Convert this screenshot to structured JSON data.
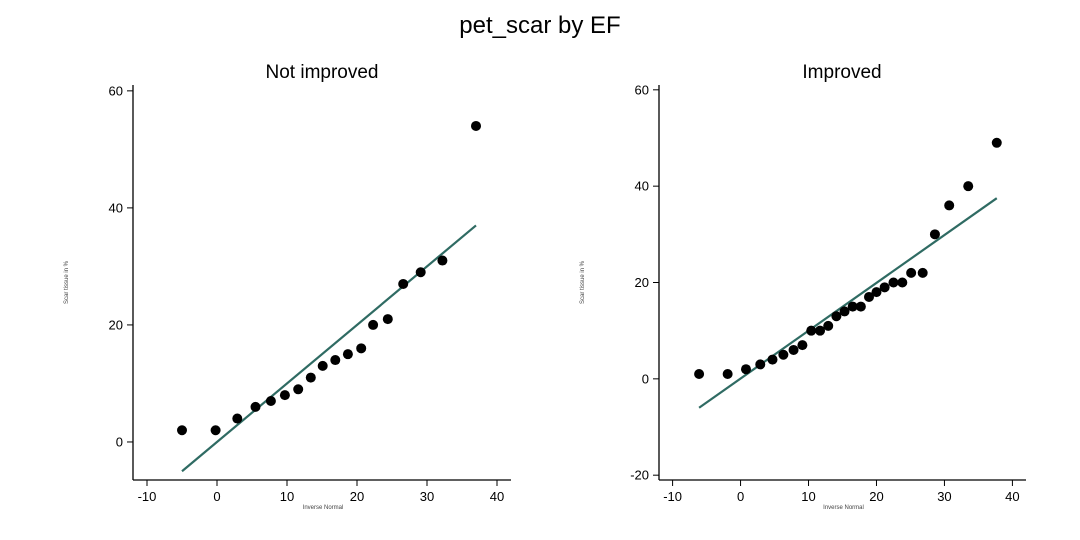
{
  "title": "pet_scar by EF",
  "colors": {
    "points": "#000000",
    "fit_line": "#2f6b63",
    "axis": "#000000",
    "background": "#ffffff"
  },
  "chart_data": [
    {
      "type": "scatter",
      "title": "Not improved",
      "xlabel": "Inverse Normal",
      "ylabel": "Scar tissue in %",
      "xlim": [
        -12,
        42
      ],
      "ylim": [
        -6.5,
        61
      ],
      "xticks": [
        -10,
        0,
        10,
        20,
        30,
        40
      ],
      "yticks": [
        0,
        20,
        40,
        60
      ],
      "grid": false,
      "points": [
        {
          "x": -5.0,
          "y": 2
        },
        {
          "x": -0.2,
          "y": 2
        },
        {
          "x": 2.9,
          "y": 4
        },
        {
          "x": 5.5,
          "y": 6
        },
        {
          "x": 7.7,
          "y": 7
        },
        {
          "x": 9.7,
          "y": 8
        },
        {
          "x": 11.6,
          "y": 9
        },
        {
          "x": 13.4,
          "y": 11
        },
        {
          "x": 15.1,
          "y": 13
        },
        {
          "x": 16.9,
          "y": 14
        },
        {
          "x": 18.7,
          "y": 15
        },
        {
          "x": 20.6,
          "y": 16
        },
        {
          "x": 22.3,
          "y": 20
        },
        {
          "x": 24.4,
          "y": 21
        },
        {
          "x": 26.6,
          "y": 27
        },
        {
          "x": 29.1,
          "y": 29
        },
        {
          "x": 32.2,
          "y": 31
        },
        {
          "x": 37.0,
          "y": 54
        }
      ],
      "fit_line": [
        {
          "x": -5.0,
          "y": -5
        },
        {
          "x": 37.0,
          "y": 37
        }
      ]
    },
    {
      "type": "scatter",
      "title": "Improved",
      "xlabel": "Inverse Normal",
      "ylabel": "Scar tissue in %",
      "xlim": [
        -12,
        42
      ],
      "ylim": [
        -21,
        61
      ],
      "xticks": [
        -10,
        0,
        10,
        20,
        30,
        40
      ],
      "yticks": [
        -20,
        0,
        20,
        40,
        60
      ],
      "grid": false,
      "points": [
        {
          "x": -6.1,
          "y": 1
        },
        {
          "x": -1.9,
          "y": 1
        },
        {
          "x": 0.8,
          "y": 2
        },
        {
          "x": 2.9,
          "y": 3
        },
        {
          "x": 4.7,
          "y": 4
        },
        {
          "x": 6.3,
          "y": 5
        },
        {
          "x": 7.8,
          "y": 6
        },
        {
          "x": 9.1,
          "y": 7
        },
        {
          "x": 10.4,
          "y": 10
        },
        {
          "x": 11.7,
          "y": 10
        },
        {
          "x": 12.9,
          "y": 11
        },
        {
          "x": 14.1,
          "y": 13
        },
        {
          "x": 15.3,
          "y": 14
        },
        {
          "x": 16.5,
          "y": 15
        },
        {
          "x": 17.7,
          "y": 15
        },
        {
          "x": 18.9,
          "y": 17
        },
        {
          "x": 20.0,
          "y": 18
        },
        {
          "x": 21.2,
          "y": 19
        },
        {
          "x": 22.5,
          "y": 20
        },
        {
          "x": 23.8,
          "y": 20
        },
        {
          "x": 25.1,
          "y": 22
        },
        {
          "x": 26.8,
          "y": 22
        },
        {
          "x": 28.6,
          "y": 30
        },
        {
          "x": 30.7,
          "y": 36
        },
        {
          "x": 33.5,
          "y": 40
        },
        {
          "x": 37.7,
          "y": 49
        }
      ],
      "fit_line": [
        {
          "x": -6.1,
          "y": -6
        },
        {
          "x": 37.7,
          "y": 37.5
        }
      ]
    }
  ]
}
